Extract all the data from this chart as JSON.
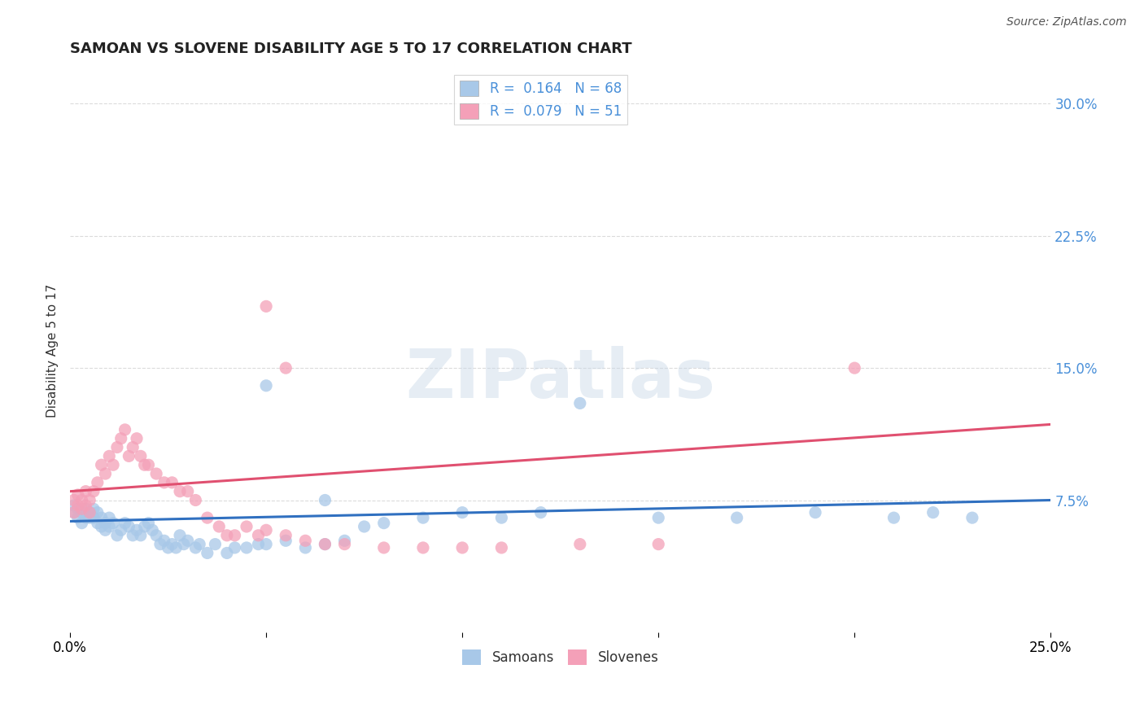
{
  "title": "SAMOAN VS SLOVENE DISABILITY AGE 5 TO 17 CORRELATION CHART",
  "source": "Source: ZipAtlas.com",
  "ylabel": "Disability Age 5 to 17",
  "xlim": [
    0.0,
    0.25
  ],
  "ylim": [
    0.0,
    0.32
  ],
  "yticks": [
    0.075,
    0.15,
    0.225,
    0.3
  ],
  "ytick_labels": [
    "7.5%",
    "15.0%",
    "22.5%",
    "30.0%"
  ],
  "xticks": [
    0.0,
    0.05,
    0.1,
    0.15,
    0.2,
    0.25
  ],
  "xtick_labels": [
    "0.0%",
    "",
    "",
    "",
    "",
    "25.0%"
  ],
  "samoans_color": "#a8c8e8",
  "slovenes_color": "#f4a0b8",
  "trend_samoan_color": "#3070c0",
  "trend_slovene_color": "#e05070",
  "R_samoan": 0.164,
  "N_samoan": 68,
  "R_slovene": 0.079,
  "N_slovene": 51,
  "background_color": "#ffffff",
  "grid_color": "#cccccc",
  "watermark": "ZIPatlas",
  "samoans_x": [
    0.001,
    0.001,
    0.002,
    0.002,
    0.003,
    0.003,
    0.004,
    0.004,
    0.005,
    0.005,
    0.006,
    0.006,
    0.007,
    0.007,
    0.008,
    0.008,
    0.009,
    0.009,
    0.01,
    0.01,
    0.011,
    0.012,
    0.013,
    0.014,
    0.015,
    0.016,
    0.017,
    0.018,
    0.019,
    0.02,
    0.021,
    0.022,
    0.023,
    0.024,
    0.025,
    0.026,
    0.027,
    0.028,
    0.029,
    0.03,
    0.032,
    0.033,
    0.035,
    0.037,
    0.04,
    0.042,
    0.045,
    0.048,
    0.05,
    0.055,
    0.06,
    0.065,
    0.07,
    0.075,
    0.08,
    0.09,
    0.1,
    0.11,
    0.12,
    0.13,
    0.15,
    0.17,
    0.19,
    0.21,
    0.22,
    0.23,
    0.05,
    0.065
  ],
  "samoans_y": [
    0.068,
    0.072,
    0.065,
    0.07,
    0.062,
    0.068,
    0.065,
    0.07,
    0.068,
    0.065,
    0.07,
    0.065,
    0.068,
    0.062,
    0.06,
    0.065,
    0.058,
    0.062,
    0.06,
    0.065,
    0.062,
    0.055,
    0.058,
    0.062,
    0.06,
    0.055,
    0.058,
    0.055,
    0.06,
    0.062,
    0.058,
    0.055,
    0.05,
    0.052,
    0.048,
    0.05,
    0.048,
    0.055,
    0.05,
    0.052,
    0.048,
    0.05,
    0.045,
    0.05,
    0.045,
    0.048,
    0.048,
    0.05,
    0.05,
    0.052,
    0.048,
    0.05,
    0.052,
    0.06,
    0.062,
    0.065,
    0.068,
    0.065,
    0.068,
    0.13,
    0.065,
    0.065,
    0.068,
    0.065,
    0.068,
    0.065,
    0.14,
    0.075
  ],
  "slovenes_x": [
    0.001,
    0.001,
    0.002,
    0.002,
    0.003,
    0.003,
    0.004,
    0.004,
    0.005,
    0.005,
    0.006,
    0.007,
    0.008,
    0.009,
    0.01,
    0.011,
    0.012,
    0.013,
    0.014,
    0.015,
    0.016,
    0.017,
    0.018,
    0.019,
    0.02,
    0.022,
    0.024,
    0.026,
    0.028,
    0.03,
    0.032,
    0.035,
    0.038,
    0.04,
    0.042,
    0.045,
    0.048,
    0.05,
    0.055,
    0.06,
    0.065,
    0.07,
    0.08,
    0.09,
    0.1,
    0.11,
    0.13,
    0.15,
    0.2,
    0.05,
    0.055
  ],
  "slovenes_y": [
    0.068,
    0.075,
    0.072,
    0.078,
    0.07,
    0.075,
    0.072,
    0.08,
    0.075,
    0.068,
    0.08,
    0.085,
    0.095,
    0.09,
    0.1,
    0.095,
    0.105,
    0.11,
    0.115,
    0.1,
    0.105,
    0.11,
    0.1,
    0.095,
    0.095,
    0.09,
    0.085,
    0.085,
    0.08,
    0.08,
    0.075,
    0.065,
    0.06,
    0.055,
    0.055,
    0.06,
    0.055,
    0.058,
    0.055,
    0.052,
    0.05,
    0.05,
    0.048,
    0.048,
    0.048,
    0.048,
    0.05,
    0.05,
    0.15,
    0.185,
    0.15
  ],
  "trend_samoan_x0": 0.0,
  "trend_samoan_y0": 0.063,
  "trend_samoan_x1": 0.25,
  "trend_samoan_y1": 0.075,
  "trend_slovene_x0": 0.0,
  "trend_slovene_y0": 0.08,
  "trend_slovene_x1": 0.25,
  "trend_slovene_y1": 0.118
}
